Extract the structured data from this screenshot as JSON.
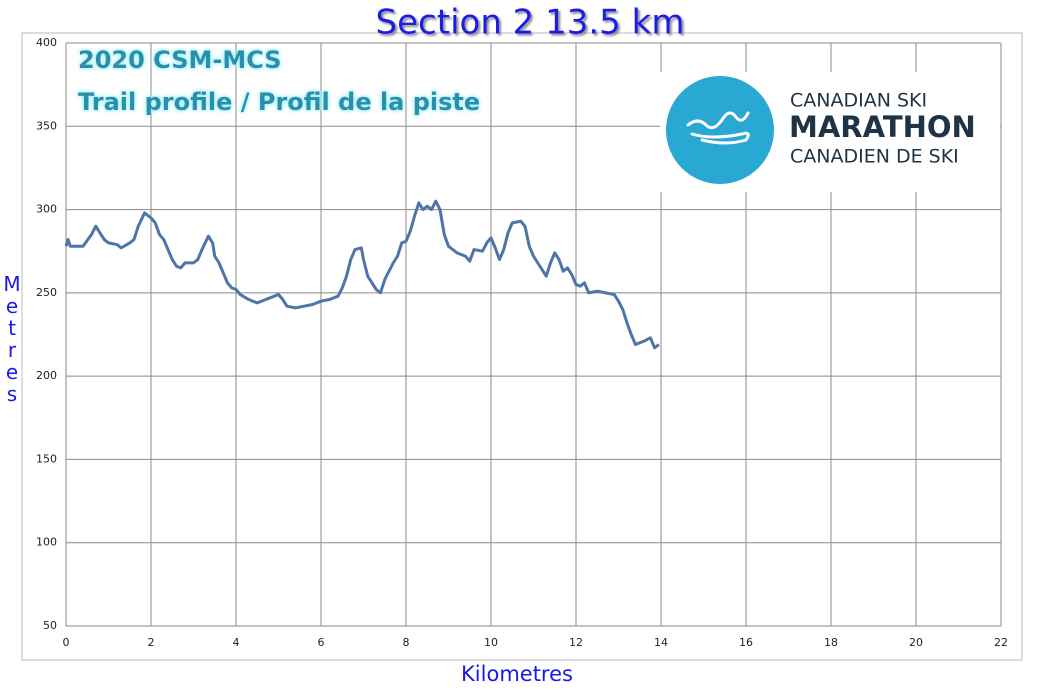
{
  "chart_data": {
    "type": "line",
    "title": "Section 2  13.5 km",
    "annotations": [
      "2020 CSM-MCS",
      "Trail profile / Profil de la piste"
    ],
    "logo": [
      "CANADIAN SKI",
      "MARATHON",
      "CANADIEN DE SKI"
    ],
    "x_label": "Kilometres",
    "y_label": "Metres",
    "xlim": [
      0,
      22
    ],
    "xticks": [
      0,
      2,
      4,
      6,
      8,
      10,
      12,
      14,
      16,
      18,
      20,
      22
    ],
    "ylim": [
      50,
      400
    ],
    "yticks": [
      50,
      100,
      150,
      200,
      250,
      300,
      350,
      400
    ],
    "grid": true,
    "x": [
      0,
      0.05,
      0.1,
      0.4,
      0.6,
      0.7,
      0.8,
      0.9,
      1.0,
      1.2,
      1.3,
      1.5,
      1.6,
      1.7,
      1.85,
      2.0,
      2.1,
      2.2,
      2.3,
      2.4,
      2.5,
      2.6,
      2.7,
      2.8,
      3.0,
      3.1,
      3.2,
      3.35,
      3.45,
      3.5,
      3.6,
      3.7,
      3.8,
      3.9,
      4.0,
      4.1,
      4.3,
      4.5,
      4.7,
      4.9,
      5.0,
      5.1,
      5.2,
      5.4,
      5.6,
      5.8,
      6.0,
      6.2,
      6.4,
      6.5,
      6.6,
      6.7,
      6.8,
      6.95,
      7.0,
      7.1,
      7.2,
      7.3,
      7.4,
      7.5,
      7.6,
      7.7,
      7.8,
      7.9,
      8.0,
      8.1,
      8.2,
      8.3,
      8.4,
      8.5,
      8.6,
      8.7,
      8.8,
      8.9,
      9.0,
      9.2,
      9.4,
      9.5,
      9.6,
      9.8,
      9.9,
      10.0,
      10.1,
      10.2,
      10.3,
      10.4,
      10.5,
      10.7,
      10.8,
      10.9,
      11.0,
      11.1,
      11.3,
      11.4,
      11.5,
      11.6,
      11.7,
      11.8,
      11.9,
      12.0,
      12.1,
      12.2,
      12.3,
      12.5,
      12.7,
      12.9,
      13.0,
      13.1,
      13.2,
      13.3,
      13.4,
      13.6,
      13.75,
      13.85,
      13.95
    ],
    "series": [
      {
        "name": "Elevation",
        "color": "#4f74a8",
        "values": [
          278,
          282,
          278,
          278,
          285,
          290,
          286,
          282,
          280,
          279,
          277,
          280,
          282,
          290,
          298,
          295,
          292,
          285,
          282,
          276,
          270,
          266,
          265,
          268,
          268,
          270,
          276,
          284,
          280,
          272,
          268,
          262,
          256,
          253,
          252,
          249,
          246,
          244,
          246,
          248,
          249,
          246,
          242,
          241,
          242,
          243,
          245,
          246,
          248,
          253,
          260,
          270,
          276,
          277,
          270,
          260,
          256,
          252,
          250,
          258,
          263,
          268,
          272,
          280,
          281,
          287,
          296,
          304,
          300,
          302,
          300,
          305,
          300,
          285,
          278,
          274,
          272,
          269,
          276,
          275,
          280,
          283,
          277,
          270,
          276,
          286,
          292,
          293,
          290,
          278,
          272,
          268,
          260,
          268,
          274,
          270,
          263,
          265,
          261,
          255,
          254,
          256,
          250,
          251,
          250,
          249,
          245,
          240,
          232,
          225,
          219,
          221,
          223,
          217,
          219
        ]
      }
    ]
  }
}
